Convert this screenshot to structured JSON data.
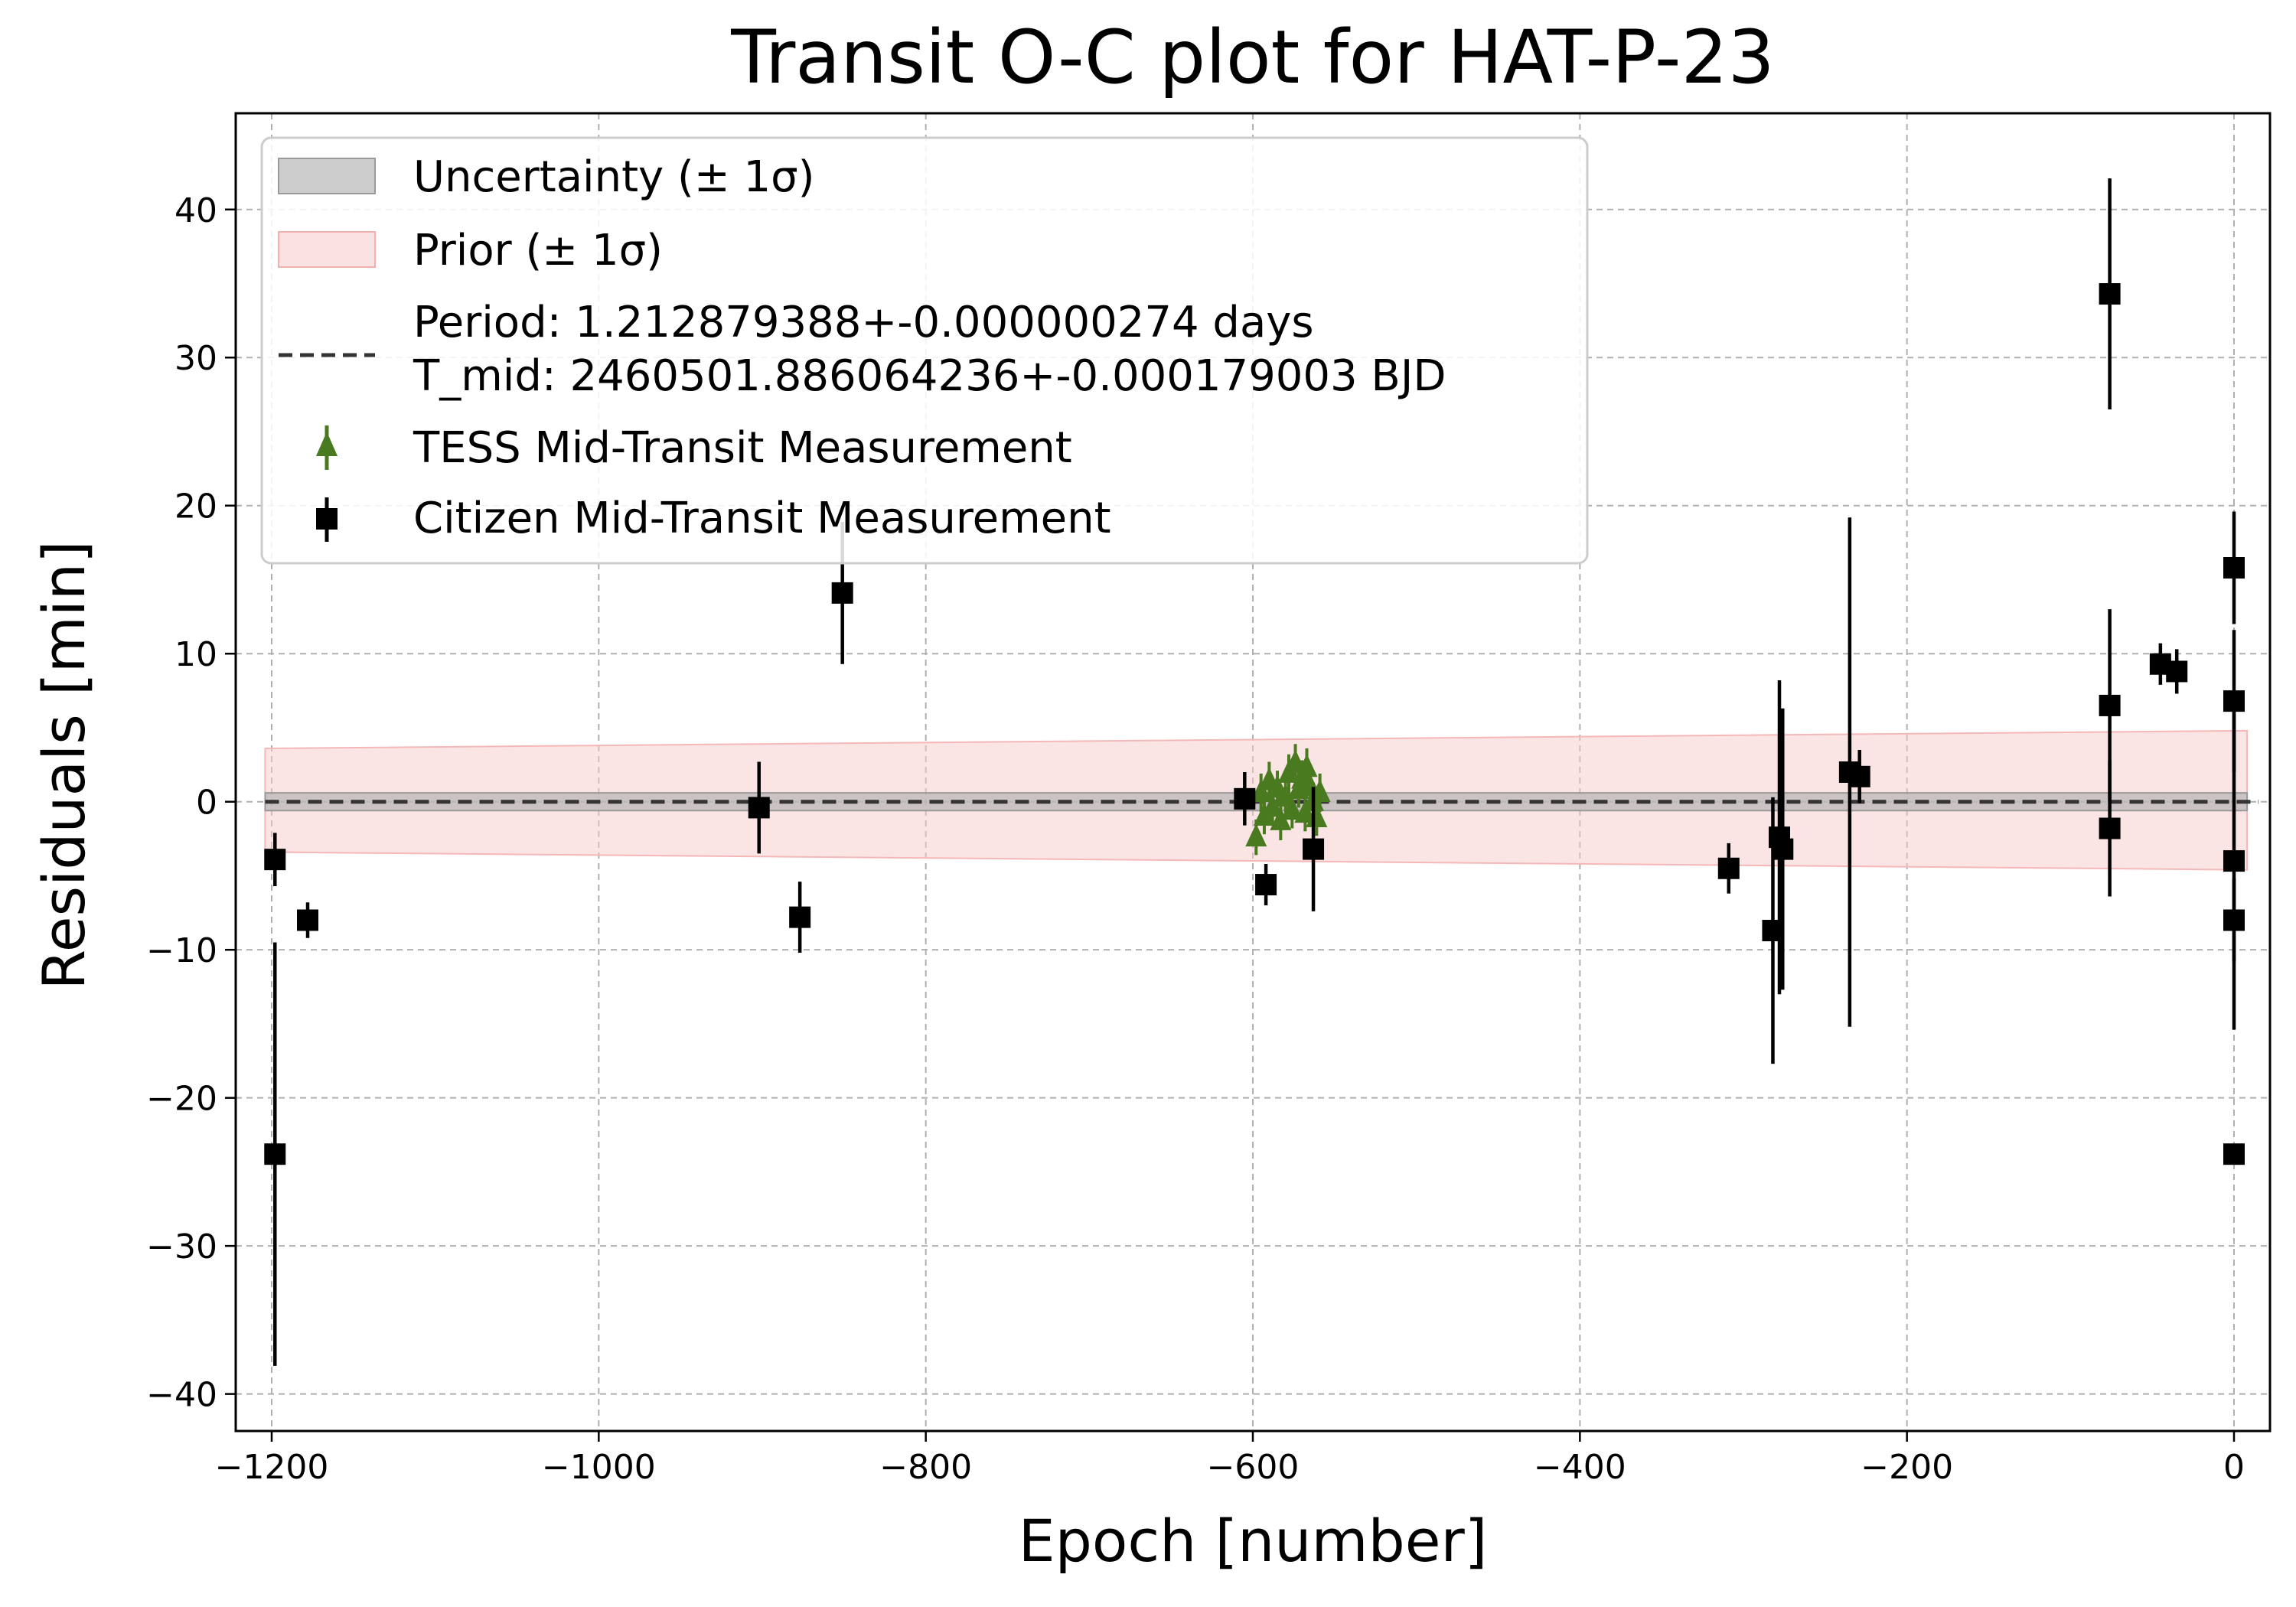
{
  "chart_data": {
    "type": "scatter",
    "title": "Transit O-C plot for HAT-P-23",
    "xlabel": "Epoch [number]",
    "ylabel": "Residuals [min]",
    "xlim": [
      -1222,
      22
    ],
    "ylim": [
      -42.5,
      46.5
    ],
    "xticks": [
      -1200,
      -1000,
      -800,
      -600,
      -400,
      -200,
      0
    ],
    "xtick_labels": [
      "−1200",
      "−1000",
      "−800",
      "−600",
      "−400",
      "−200",
      "0"
    ],
    "yticks": [
      -40,
      -30,
      -20,
      -10,
      0,
      10,
      20,
      30,
      40
    ],
    "ytick_labels": [
      "−40",
      "−30",
      "−20",
      "−10",
      "0",
      "10",
      "20",
      "30",
      "40"
    ],
    "grid": true,
    "legend_position": "top-left",
    "legend": {
      "uncertainty": "Uncertainty (± 1σ)",
      "prior": "Prior (± 1σ)",
      "fit_line1": "Period: 1.212879388+-0.000000274 days",
      "fit_line2": "T_mid: 2460501.886064236+-0.000179003 BJD",
      "tess": "TESS Mid-Transit Measurement",
      "citizen": "Citizen Mid-Transit Measurement"
    },
    "colors": {
      "uncertainty_band": "#b0b0b0",
      "prior_band": "#f7caca",
      "fit_line": "#333333",
      "tess": "#4a7a20",
      "citizen": "#000000"
    },
    "bands": {
      "uncertainty": {
        "x": [
          -1204,
          8
        ],
        "lower": [
          -0.6,
          -0.6
        ],
        "upper": [
          0.6,
          0.6
        ]
      },
      "prior": {
        "x": [
          -1204,
          8
        ],
        "lower": [
          -3.4,
          -4.6
        ],
        "upper": [
          3.6,
          4.8
        ]
      }
    },
    "fit_line": {
      "x": [
        -1204,
        15
      ],
      "y": [
        0,
        0
      ]
    },
    "series": [
      {
        "name": "Citizen Mid-Transit Measurement",
        "marker": "square",
        "points": [
          {
            "x": -1198,
            "y": -3.9,
            "err": 1.8
          },
          {
            "x": -1198,
            "y": -23.8,
            "err": 14.3
          },
          {
            "x": -1178,
            "y": -8.0,
            "err": 1.2
          },
          {
            "x": -902,
            "y": -0.4,
            "err": 3.1
          },
          {
            "x": -877,
            "y": -7.8,
            "err": 2.4
          },
          {
            "x": -851,
            "y": 14.1,
            "err": 4.8
          },
          {
            "x": -605,
            "y": 0.2,
            "err": 1.8
          },
          {
            "x": -592,
            "y": -5.6,
            "err": 1.4
          },
          {
            "x": -563,
            "y": -3.2,
            "err": 4.2
          },
          {
            "x": -309,
            "y": -4.5,
            "err": 1.7
          },
          {
            "x": -282,
            "y": -8.7,
            "err": 9.0
          },
          {
            "x": -278,
            "y": -2.4,
            "err": 10.6
          },
          {
            "x": -276,
            "y": -3.2,
            "err": 9.5
          },
          {
            "x": -235,
            "y": 2.0,
            "err": 17.2
          },
          {
            "x": -229,
            "y": 1.7,
            "err": 1.8
          },
          {
            "x": -76,
            "y": 34.3,
            "err": 7.8
          },
          {
            "x": -76,
            "y": 6.5,
            "err": 6.5
          },
          {
            "x": -76,
            "y": -1.8,
            "err": 4.6
          },
          {
            "x": -45,
            "y": 9.3,
            "err": 1.4
          },
          {
            "x": -35,
            "y": 8.8,
            "err": 1.5
          },
          {
            "x": 0,
            "y": 15.8,
            "err": 3.8
          },
          {
            "x": 0,
            "y": 6.8,
            "err": 4.8
          },
          {
            "x": 0,
            "y": -4.0,
            "err": 11.4
          },
          {
            "x": 0,
            "y": -8.0,
            "err": 2.8
          },
          {
            "x": 0,
            "y": -23.8,
            "err": 0.5
          }
        ]
      },
      {
        "name": "TESS Mid-Transit Measurement",
        "marker": "triangle",
        "points": [
          {
            "x": -598,
            "y": -2.4,
            "err": 1.2
          },
          {
            "x": -595,
            "y": 0.6,
            "err": 1.3
          },
          {
            "x": -593,
            "y": -1.0,
            "err": 1.2
          },
          {
            "x": -590,
            "y": 1.4,
            "err": 1.3
          },
          {
            "x": -588,
            "y": -0.4,
            "err": 1.2
          },
          {
            "x": -585,
            "y": 0.9,
            "err": 1.2
          },
          {
            "x": -583,
            "y": -1.3,
            "err": 1.3
          },
          {
            "x": -580,
            "y": 0.3,
            "err": 1.2
          },
          {
            "x": -578,
            "y": 1.9,
            "err": 1.3
          },
          {
            "x": -576,
            "y": -0.6,
            "err": 1.2
          },
          {
            "x": -574,
            "y": 2.6,
            "err": 1.3
          },
          {
            "x": -572,
            "y": 0.8,
            "err": 1.2
          },
          {
            "x": -570,
            "y": 1.5,
            "err": 1.3
          },
          {
            "x": -568,
            "y": -0.8,
            "err": 1.2
          },
          {
            "x": -567,
            "y": 2.3,
            "err": 1.3
          },
          {
            "x": -565,
            "y": 1.0,
            "err": 1.2
          },
          {
            "x": -563,
            "y": 0.0,
            "err": 1.3
          },
          {
            "x": -561,
            "y": -1.1,
            "err": 1.2
          },
          {
            "x": -559,
            "y": 0.6,
            "err": 1.3
          }
        ]
      }
    ]
  }
}
